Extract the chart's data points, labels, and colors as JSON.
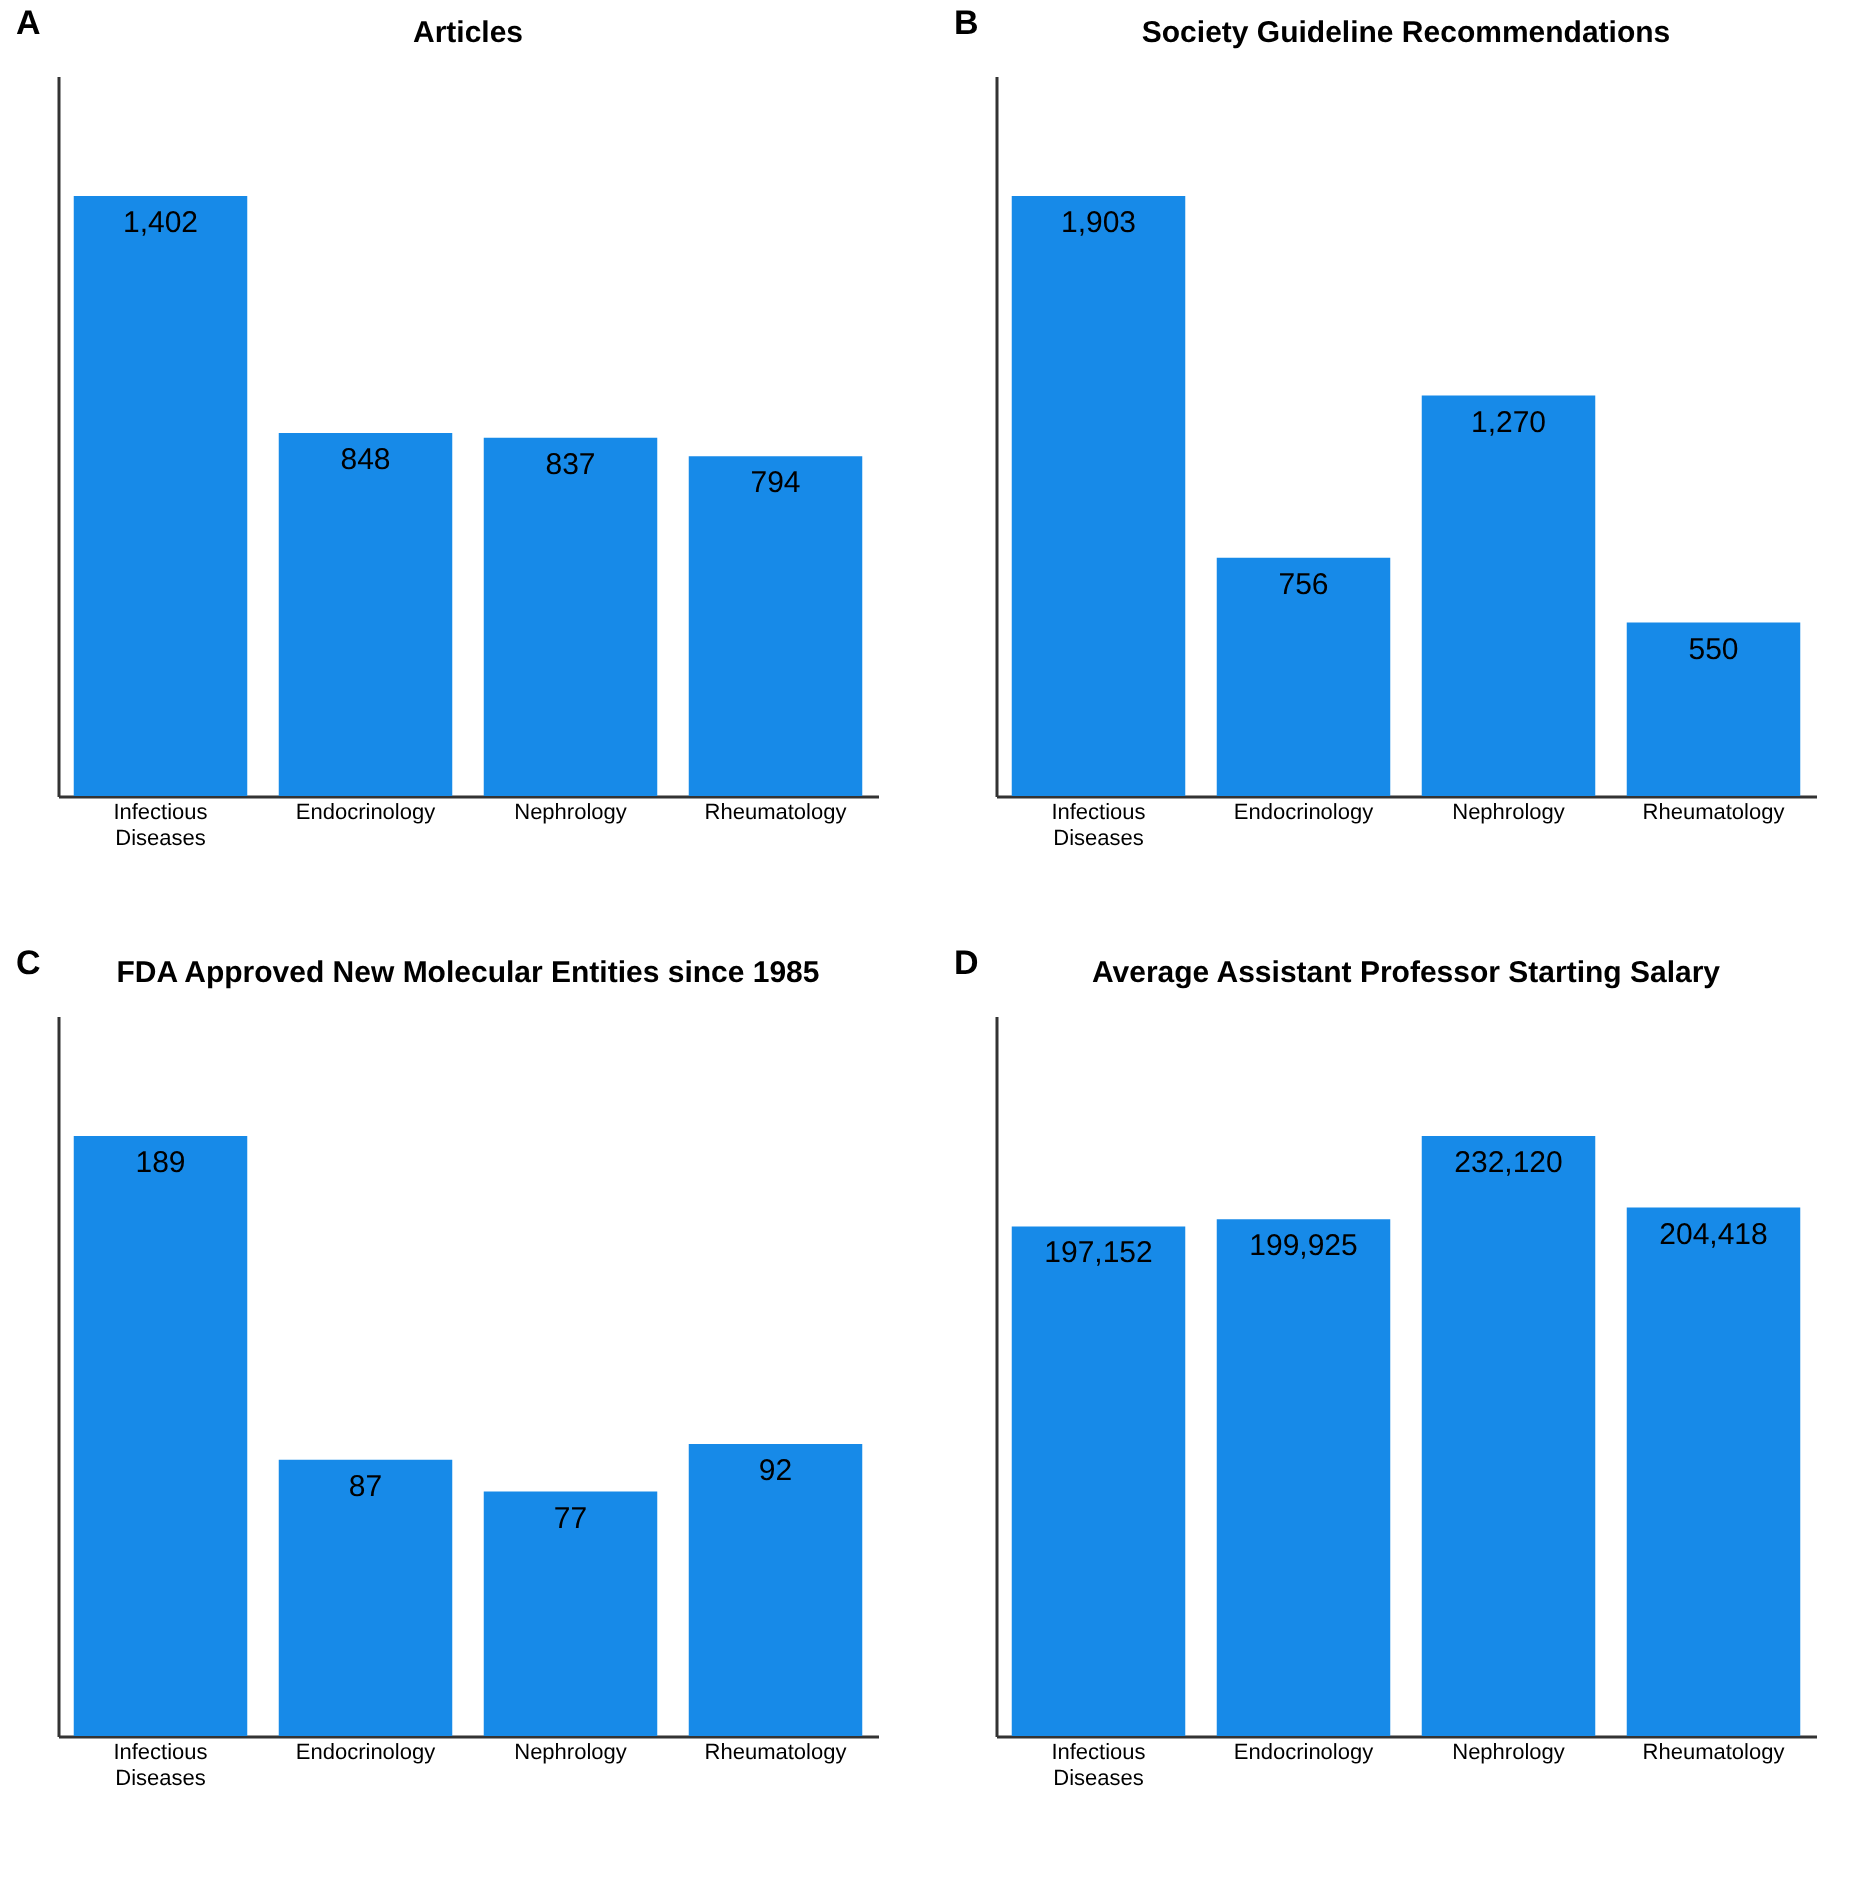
{
  "chart_data": [
    {
      "type": "bar",
      "title": "Articles",
      "annotations": [
        "A"
      ],
      "categories": [
        "Infectious Diseases",
        "Endocrinology",
        "Nephrology",
        "Rheumatology"
      ],
      "values": [
        1402,
        848,
        837,
        794
      ],
      "value_labels": [
        "1,402",
        "848",
        "837",
        "794"
      ],
      "color": "#178ae8"
    },
    {
      "type": "bar",
      "title": "Society Guideline Recommendations",
      "annotations": [
        "B"
      ],
      "categories": [
        "Infectious Diseases",
        "Endocrinology",
        "Nephrology",
        "Rheumatology"
      ],
      "values": [
        1903,
        756,
        1270,
        550
      ],
      "value_labels": [
        "1,903",
        "756",
        "1,270",
        "550"
      ],
      "color": "#178ae8"
    },
    {
      "type": "bar",
      "title": "FDA Approved New Molecular Entities since 1985",
      "annotations": [
        "C"
      ],
      "categories": [
        "Infectious Diseases",
        "Endocrinology",
        "Nephrology",
        "Rheumatology"
      ],
      "values": [
        189,
        87,
        77,
        92
      ],
      "value_labels": [
        "189",
        "87",
        "77",
        "92"
      ],
      "color": "#178ae8"
    },
    {
      "type": "bar",
      "title": "Average Assistant Professor Starting Salary",
      "annotations": [
        "D"
      ],
      "categories": [
        "Infectious Diseases",
        "Endocrinology",
        "Nephrology",
        "Rheumatology"
      ],
      "values": [
        197152,
        199925,
        232120,
        204418
      ],
      "value_labels": [
        "197,152",
        "199,925",
        "232,120",
        "204,418"
      ],
      "color": "#178ae8"
    }
  ]
}
